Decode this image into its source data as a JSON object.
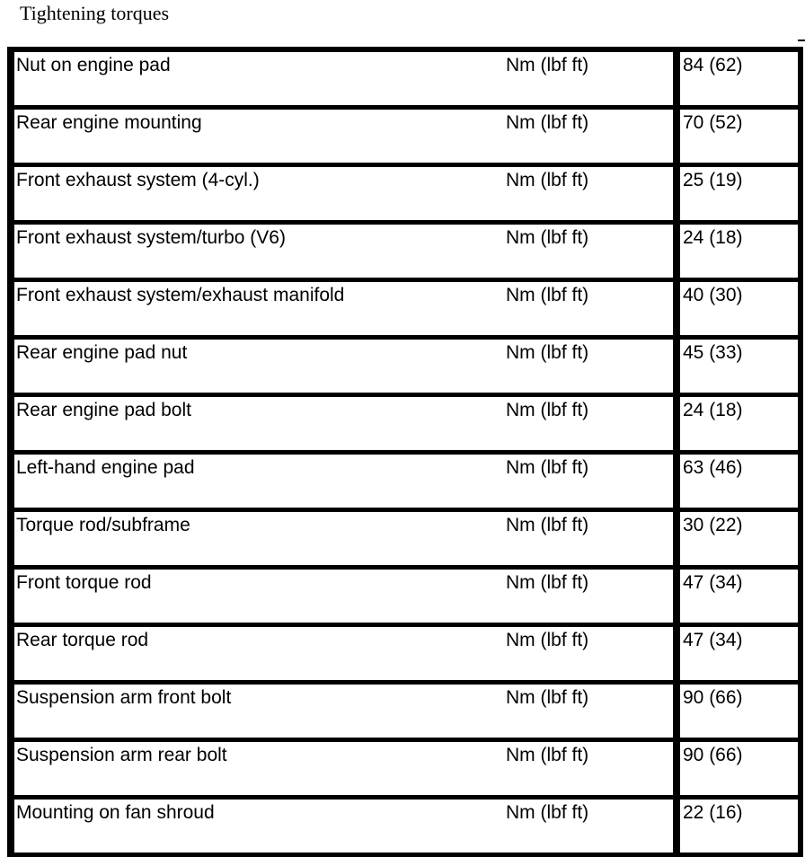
{
  "title": "Tightening torques",
  "rows": [
    {
      "item": "Nut on engine pad",
      "unit": "Nm (lbf ft)",
      "value": "84 (62)"
    },
    {
      "item": "Rear engine mounting",
      "unit": "Nm (lbf ft)",
      "value": "70 (52)"
    },
    {
      "item": "Front exhaust system (4-cyl.)",
      "unit": "Nm (lbf ft)",
      "value": "25 (19)"
    },
    {
      "item": "Front exhaust system/turbo (V6)",
      "unit": "Nm (lbf ft)",
      "value": "24 (18)"
    },
    {
      "item": "Front exhaust system/exhaust manifold",
      "unit": "Nm (lbf ft)",
      "value": "40 (30)"
    },
    {
      "item": "Rear engine pad nut",
      "unit": "Nm (lbf ft)",
      "value": "45 (33)"
    },
    {
      "item": "Rear engine pad bolt",
      "unit": "Nm (lbf ft)",
      "value": "24 (18)"
    },
    {
      "item": "Left-hand engine pad",
      "unit": "Nm (lbf ft)",
      "value": "63 (46)"
    },
    {
      "item": "Torque rod/subframe",
      "unit": "Nm (lbf ft)",
      "value": "30 (22)"
    },
    {
      "item": "Front torque rod",
      "unit": "Nm (lbf ft)",
      "value": "47 (34)"
    },
    {
      "item": "Rear torque rod",
      "unit": "Nm (lbf ft)",
      "value": "47 (34)"
    },
    {
      "item": "Suspension arm front bolt",
      "unit": "Nm (lbf ft)",
      "value": "90 (66)"
    },
    {
      "item": "Suspension arm rear bolt",
      "unit": "Nm (lbf ft)",
      "value": "90 (66)"
    },
    {
      "item": "Mounting on fan shroud",
      "unit": "Nm (lbf ft)",
      "value": "22 (16)"
    }
  ]
}
